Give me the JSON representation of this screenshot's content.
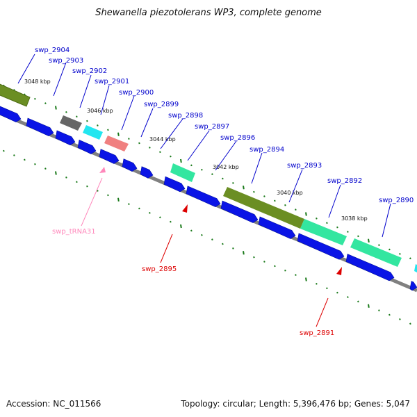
{
  "title": "Shewanella piezotolerans WP3, complete genome",
  "footer": {
    "accession": "Accession: NC_011566",
    "summary": "Topology: circular; Length: 5,396,476 bp; Genes: 5,047"
  },
  "colors": {
    "cds": "#0a14e6",
    "backbone": "#808080",
    "tick": "#1a7a1a",
    "label_blue": "#0000cc",
    "label_red": "#dd0000",
    "label_pink": "#ff88bb",
    "olive": "#6b8e23",
    "spring": "#33e6a0",
    "gray_gene": "#666666",
    "cyan_gene": "#22e6f0",
    "salmon_gene": "#f08080"
  },
  "kbp_labels": [
    "3048 kbp",
    "3046 kbp",
    "3044 kbp",
    "3042 kbp",
    "3040 kbp",
    "3038 kbp"
  ],
  "genes": [
    {
      "name": "swp_2904",
      "color": "blue"
    },
    {
      "name": "swp_2903",
      "color": "blue"
    },
    {
      "name": "swp_2902",
      "color": "blue"
    },
    {
      "name": "swp_2901",
      "color": "blue"
    },
    {
      "name": "swp_2900",
      "color": "blue"
    },
    {
      "name": "swp_2899",
      "color": "blue"
    },
    {
      "name": "swp_2898",
      "color": "blue"
    },
    {
      "name": "swp_2897",
      "color": "blue"
    },
    {
      "name": "swp_2896",
      "color": "blue"
    },
    {
      "name": "swp_2894",
      "color": "blue"
    },
    {
      "name": "swp_2893",
      "color": "blue"
    },
    {
      "name": "swp_2892",
      "color": "blue"
    },
    {
      "name": "swp_2890",
      "color": "blue"
    },
    {
      "name": "swp_tRNA31",
      "color": "pink"
    },
    {
      "name": "swp_2895",
      "color": "red"
    },
    {
      "name": "swp_2891",
      "color": "red"
    }
  ]
}
